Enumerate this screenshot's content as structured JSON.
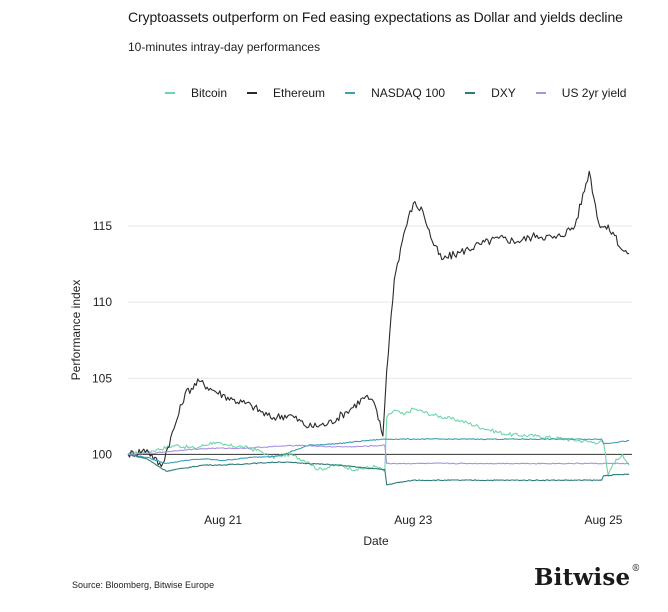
{
  "header": {
    "title": "Cryptoassets outperform on Fed easing expectations as Dollar and yields decline",
    "subtitle": "10-minutes intray-day performances"
  },
  "footer": {
    "source": "Source: Bloomberg, Bitwise Europe",
    "logo_text": "Bitwise"
  },
  "chart_data": {
    "type": "line",
    "xlabel": "Date",
    "ylabel": "Performance index",
    "x_ticks": [
      "Aug 21",
      "Aug 23",
      "Aug 25"
    ],
    "x_tick_days": [
      21,
      23,
      25
    ],
    "x_range_days": [
      20.0,
      25.3
    ],
    "y_ticks": [
      100,
      105,
      110,
      115
    ],
    "ylim": [
      97,
      120
    ],
    "reference_line": 100,
    "legend_position": "top",
    "series": [
      {
        "name": "Bitcoin",
        "color": "#6fd6a8",
        "points": [
          [
            20.0,
            100
          ],
          [
            20.3,
            100.3
          ],
          [
            20.5,
            100.6
          ],
          [
            20.7,
            100.4
          ],
          [
            20.9,
            100.8
          ],
          [
            21.0,
            100.6
          ],
          [
            21.2,
            100.5
          ],
          [
            21.4,
            100.2
          ],
          [
            21.5,
            99.8
          ],
          [
            21.7,
            100.0
          ],
          [
            21.9,
            99.5
          ],
          [
            22.0,
            99.0
          ],
          [
            22.2,
            99.3
          ],
          [
            22.4,
            99.0
          ],
          [
            22.6,
            99.2
          ],
          [
            22.7,
            98.9
          ],
          [
            22.72,
            102.4
          ],
          [
            22.8,
            102.9
          ],
          [
            22.9,
            102.6
          ],
          [
            23.0,
            103.0
          ],
          [
            23.2,
            102.6
          ],
          [
            23.5,
            102.2
          ],
          [
            23.8,
            101.6
          ],
          [
            24.0,
            101.3
          ],
          [
            24.3,
            101.2
          ],
          [
            24.6,
            101.0
          ],
          [
            24.9,
            100.8
          ],
          [
            25.0,
            100.8
          ],
          [
            25.05,
            98.6
          ],
          [
            25.1,
            99.4
          ],
          [
            25.2,
            100.0
          ],
          [
            25.27,
            99.3
          ]
        ]
      },
      {
        "name": "Ethereum",
        "color": "#2b2b2b",
        "points": [
          [
            20.0,
            100
          ],
          [
            20.2,
            100.3
          ],
          [
            20.35,
            99.2
          ],
          [
            20.5,
            102.0
          ],
          [
            20.6,
            104.0
          ],
          [
            20.75,
            104.8
          ],
          [
            20.9,
            104.2
          ],
          [
            21.1,
            103.6
          ],
          [
            21.3,
            103.2
          ],
          [
            21.5,
            102.4
          ],
          [
            21.7,
            102.6
          ],
          [
            21.9,
            101.8
          ],
          [
            22.1,
            102.0
          ],
          [
            22.3,
            102.8
          ],
          [
            22.5,
            103.8
          ],
          [
            22.6,
            103.2
          ],
          [
            22.68,
            101.2
          ],
          [
            22.72,
            105.5
          ],
          [
            22.8,
            111.5
          ],
          [
            22.9,
            114.5
          ],
          [
            23.0,
            116.5
          ],
          [
            23.1,
            116.0
          ],
          [
            23.2,
            114.0
          ],
          [
            23.3,
            112.8
          ],
          [
            23.5,
            113.3
          ],
          [
            23.7,
            113.8
          ],
          [
            23.9,
            114.2
          ],
          [
            24.1,
            114.0
          ],
          [
            24.3,
            114.4
          ],
          [
            24.5,
            114.2
          ],
          [
            24.7,
            115.0
          ],
          [
            24.85,
            118.6
          ],
          [
            24.95,
            115.2
          ],
          [
            25.1,
            114.6
          ],
          [
            25.2,
            113.4
          ],
          [
            25.27,
            113.2
          ]
        ]
      },
      {
        "name": "NASDAQ 100",
        "color": "#3b9fb5",
        "points": [
          [
            20.0,
            100
          ],
          [
            20.2,
            99.8
          ],
          [
            20.4,
            99.4
          ],
          [
            20.6,
            99.6
          ],
          [
            20.8,
            99.7
          ],
          [
            21.0,
            99.6
          ],
          [
            21.3,
            99.8
          ],
          [
            21.6,
            99.9
          ],
          [
            21.9,
            100.6
          ],
          [
            22.2,
            100.7
          ],
          [
            22.5,
            100.9
          ],
          [
            22.7,
            101.0
          ],
          [
            23.0,
            101.0
          ],
          [
            24.0,
            101.0
          ],
          [
            24.98,
            101.0
          ],
          [
            25.0,
            100.7
          ],
          [
            25.27,
            100.9
          ]
        ]
      },
      {
        "name": "DXY",
        "color": "#2e7d7a",
        "points": [
          [
            20.0,
            100
          ],
          [
            20.2,
            99.7
          ],
          [
            20.4,
            98.9
          ],
          [
            20.6,
            99.1
          ],
          [
            20.8,
            99.3
          ],
          [
            21.0,
            99.3
          ],
          [
            21.3,
            99.4
          ],
          [
            21.6,
            99.5
          ],
          [
            21.9,
            99.4
          ],
          [
            22.2,
            99.3
          ],
          [
            22.5,
            99.1
          ],
          [
            22.7,
            99.0
          ],
          [
            22.72,
            98.0
          ],
          [
            22.8,
            98.1
          ],
          [
            23.0,
            98.3
          ],
          [
            24.0,
            98.3
          ],
          [
            24.98,
            98.3
          ],
          [
            25.0,
            98.6
          ],
          [
            25.27,
            98.7
          ]
        ]
      },
      {
        "name": "US 2yr yield",
        "color": "#a993de",
        "points": [
          [
            20.0,
            100
          ],
          [
            20.3,
            100.1
          ],
          [
            20.6,
            100.3
          ],
          [
            20.9,
            100.4
          ],
          [
            21.2,
            100.4
          ],
          [
            21.5,
            100.5
          ],
          [
            21.8,
            100.6
          ],
          [
            22.1,
            100.5
          ],
          [
            22.4,
            100.5
          ],
          [
            22.7,
            100.6
          ],
          [
            22.72,
            99.4
          ],
          [
            23.0,
            99.4
          ],
          [
            24.0,
            99.4
          ],
          [
            25.0,
            99.4
          ],
          [
            25.27,
            99.4
          ]
        ]
      }
    ]
  }
}
